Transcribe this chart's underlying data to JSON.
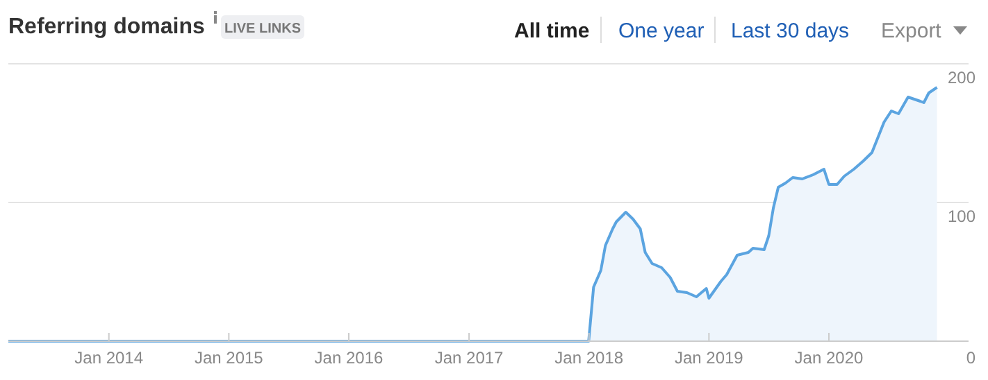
{
  "chart_data": {
    "type": "area",
    "title": "Referring domains",
    "annotations": [
      "LIVE LINKS",
      "All time",
      "One year",
      "Last 30 days",
      "Export"
    ],
    "x": [
      "2013-03-01",
      "2017-12-31",
      "2018-01-15",
      "2018-02-06",
      "2018-02-20",
      "2018-03-14",
      "2018-03-25",
      "2018-04-23",
      "2018-05-15",
      "2018-06-06",
      "2018-06-21",
      "2018-07-12",
      "2018-08-10",
      "2018-09-05",
      "2018-09-27",
      "2018-10-26",
      "2018-11-24",
      "2018-12-24",
      "2019-01-01",
      "2019-02-06",
      "2019-02-24",
      "2019-03-28",
      "2019-05-01",
      "2019-05-15",
      "2019-06-18",
      "2019-07-02",
      "2019-07-16",
      "2019-07-31",
      "2019-08-22",
      "2019-09-13",
      "2019-10-12",
      "2019-11-14",
      "2019-12-17",
      "2020-01-01",
      "2020-01-26",
      "2020-02-17",
      "2020-03-17",
      "2020-04-15",
      "2020-05-11",
      "2020-06-17",
      "2020-07-09",
      "2020-07-31",
      "2020-08-29",
      "2020-10-05",
      "2020-10-16",
      "2020-10-31",
      "2020-11-25"
    ],
    "series": [
      {
        "color": "#5ba4e0",
        "values": [
          0,
          0,
          39,
          51,
          69,
          81,
          86,
          93,
          88,
          81,
          64,
          56,
          53,
          46,
          36,
          35,
          32,
          38,
          31,
          43,
          48,
          62,
          64,
          67,
          66,
          76,
          96,
          111,
          114,
          118,
          117,
          120,
          124,
          113,
          113,
          119,
          124,
          130,
          136,
          158,
          166,
          164,
          176,
          173,
          172,
          179,
          183
        ]
      }
    ],
    "xlim": [
      "2013-03-01",
      "2021-03-01"
    ],
    "xticks": [
      {
        "value": "2014-01-01",
        "label": "Jan 2014"
      },
      {
        "value": "2015-01-01",
        "label": "Jan 2015"
      },
      {
        "value": "2016-01-01",
        "label": "Jan 2016"
      },
      {
        "value": "2017-01-01",
        "label": "Jan 2017"
      },
      {
        "value": "2018-01-01",
        "label": "Jan 2018"
      },
      {
        "value": "2019-01-01",
        "label": "Jan 2019"
      },
      {
        "value": "2020-01-01",
        "label": "Jan 2020"
      }
    ],
    "ylim": [
      0,
      200
    ],
    "yticks": [
      0,
      100,
      200
    ],
    "grid": "y"
  }
}
